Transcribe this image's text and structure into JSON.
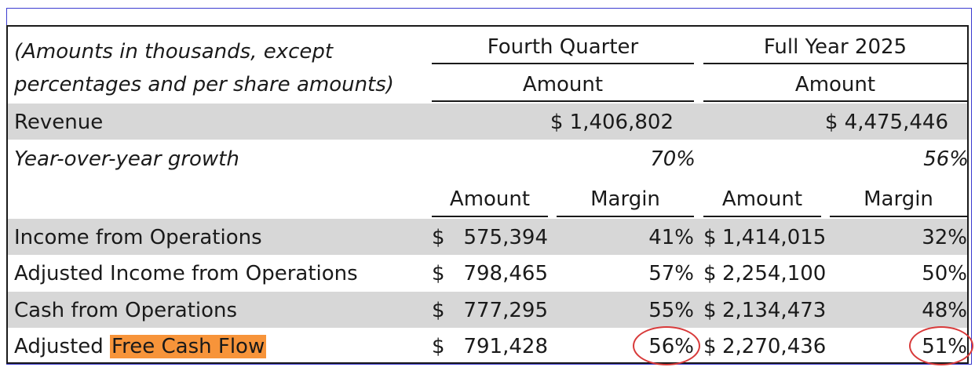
{
  "header": {
    "note_line1": "(Amounts in thousands, except",
    "note_line2": "percentages and per share amounts)",
    "q4_label": "Fourth Quarter",
    "fy_label": "Full Year 2025",
    "amount_label": "Amount",
    "margin_label": "Margin"
  },
  "revenue": {
    "label": "Revenue",
    "q4_amount": "$ 1,406,802",
    "fy_amount": "$ 4,475,446"
  },
  "growth": {
    "label": "Year-over-year growth",
    "q4": "70%",
    "fy": "56%"
  },
  "rows": [
    {
      "label": "Income from Operations",
      "q4_amount": "575,394",
      "q4_margin": "41%",
      "fy_amount": "1,414,015",
      "fy_margin": "32%"
    },
    {
      "label": "Adjusted Income from Operations",
      "q4_amount": "798,465",
      "q4_margin": "57%",
      "fy_amount": "2,254,100",
      "fy_margin": "50%"
    },
    {
      "label": "Cash from Operations",
      "q4_amount": "777,295",
      "q4_margin": "55%",
      "fy_amount": "2,134,473",
      "fy_margin": "48%"
    },
    {
      "label_prefix": "Adjusted",
      "label_highlight": "Free Cash Flow",
      "q4_amount": "791,428",
      "q4_margin": "56%",
      "fy_amount": "2,270,436",
      "fy_margin": "51%"
    }
  ],
  "currency_symbol": "$",
  "colors": {
    "shade": "#d7d7d7",
    "highlight": "#f7943a",
    "annotation_circle": "#d83a3a"
  }
}
